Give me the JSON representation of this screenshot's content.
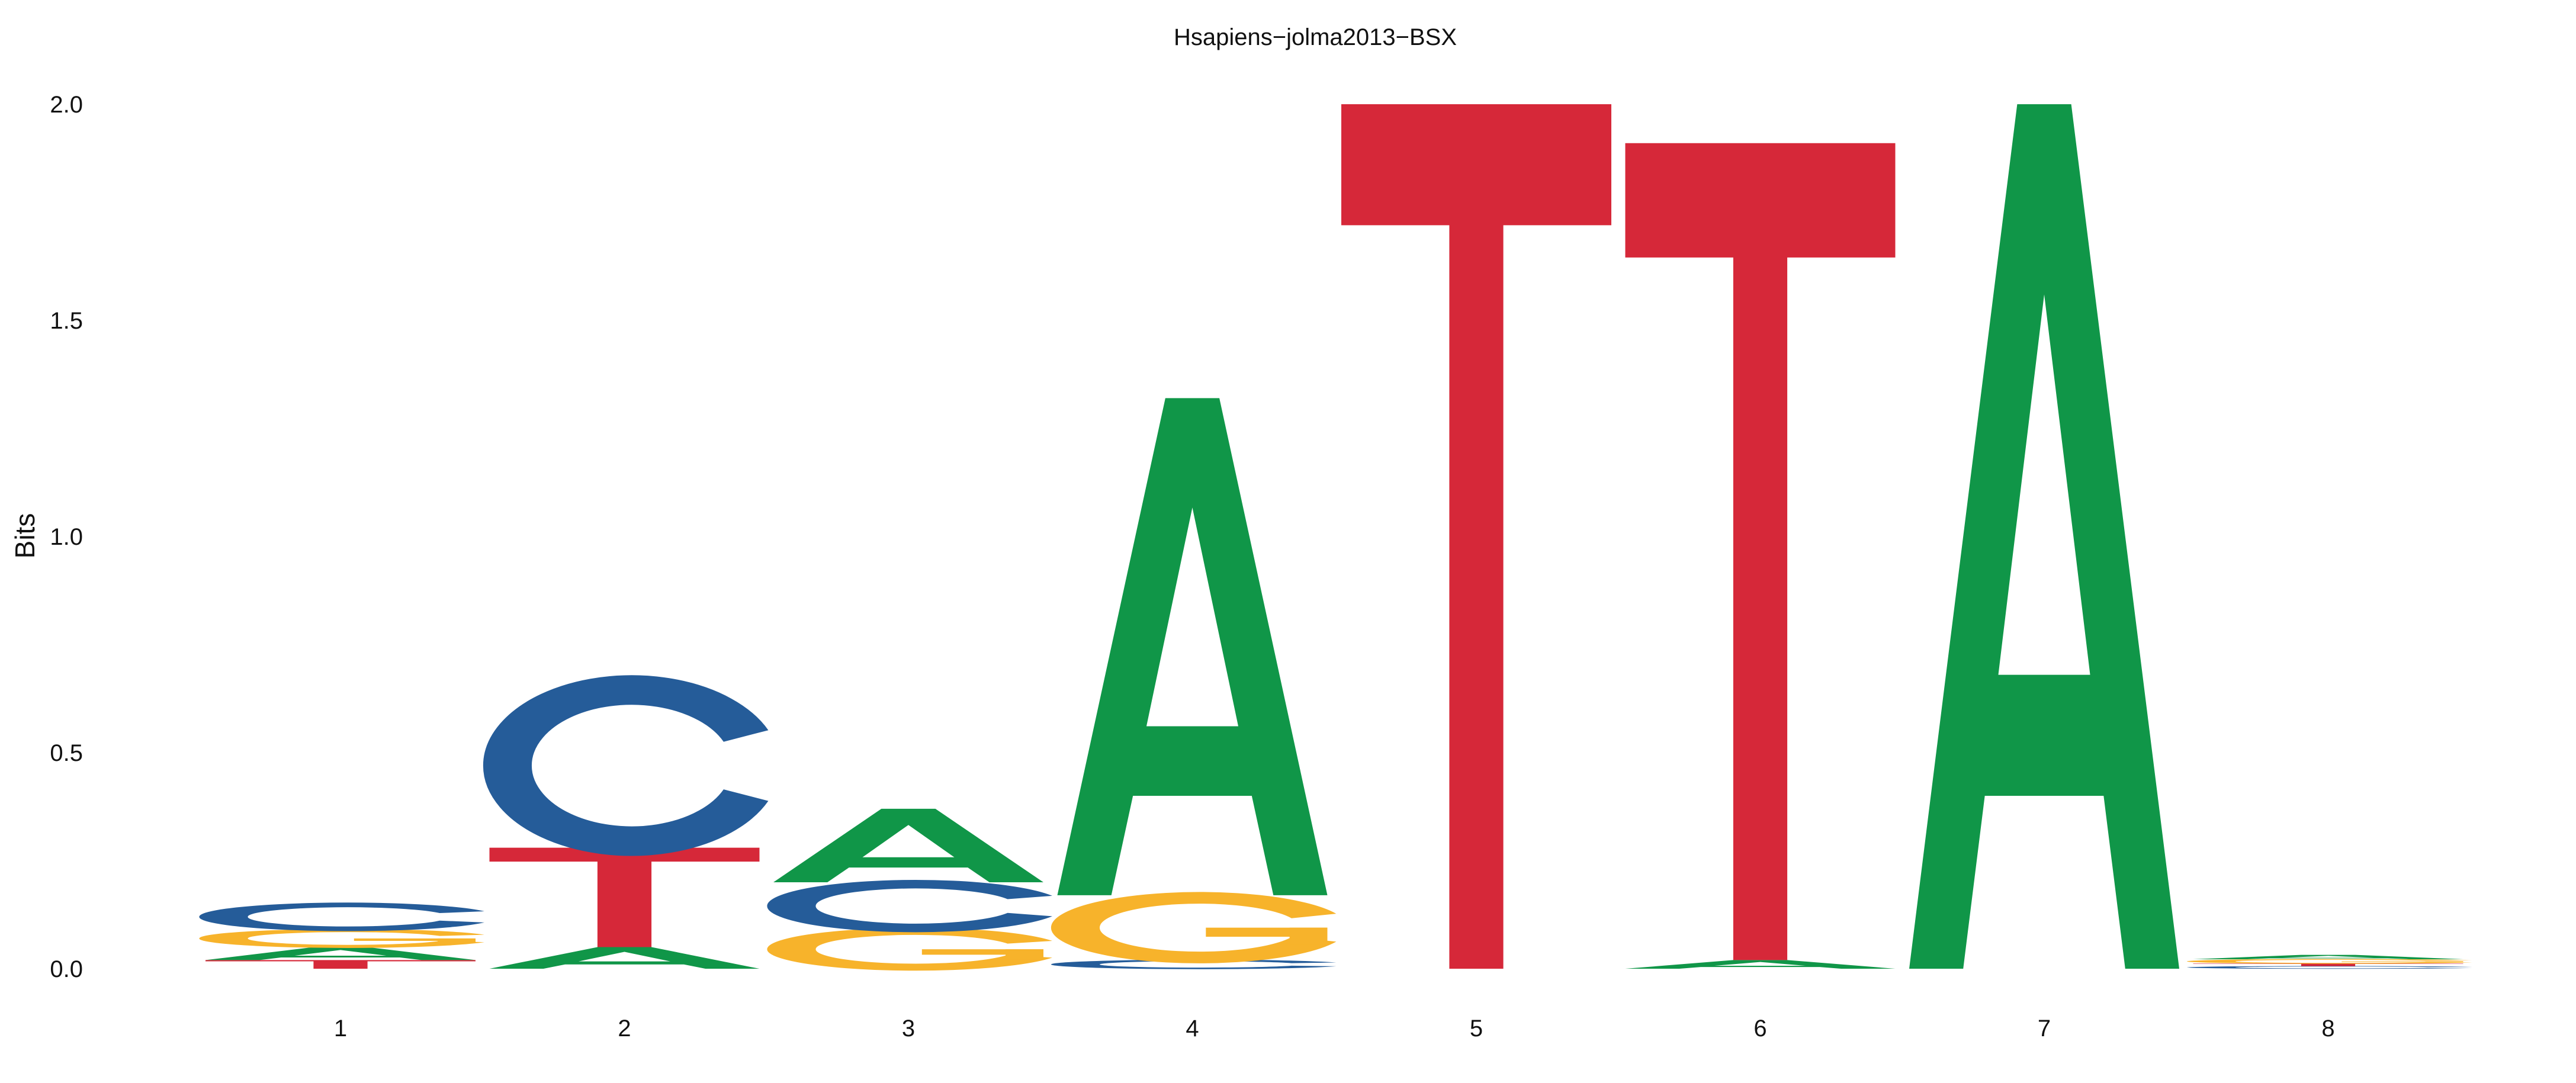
{
  "chart_data": {
    "type": "sequence-logo",
    "title": "Hsapiens−jolma2013−BSX",
    "ylabel": "Bits",
    "xlabel": "",
    "ylim": [
      0,
      2
    ],
    "yticks": [
      "0.0",
      "0.5",
      "1.0",
      "1.5",
      "2.0"
    ],
    "positions": [
      "1",
      "2",
      "3",
      "4",
      "5",
      "6",
      "7",
      "8"
    ],
    "colors": {
      "A": "#109648",
      "C": "#255C99",
      "G": "#F7B32B",
      "T": "#D62839"
    },
    "stacks": [
      [
        {
          "letter": "T",
          "bits": 0.02
        },
        {
          "letter": "A",
          "bits": 0.03
        },
        {
          "letter": "G",
          "bits": 0.04
        },
        {
          "letter": "C",
          "bits": 0.06
        }
      ],
      [
        {
          "letter": "A",
          "bits": 0.05
        },
        {
          "letter": "T",
          "bits": 0.23
        },
        {
          "letter": "C",
          "bits": 0.38
        }
      ],
      [
        {
          "letter": "G",
          "bits": 0.09
        },
        {
          "letter": "C",
          "bits": 0.11
        },
        {
          "letter": "A",
          "bits": 0.17
        }
      ],
      [
        {
          "letter": "C",
          "bits": 0.02
        },
        {
          "letter": "G",
          "bits": 0.15
        },
        {
          "letter": "A",
          "bits": 1.15
        }
      ],
      [
        {
          "letter": "T",
          "bits": 2.0
        }
      ],
      [
        {
          "letter": "A",
          "bits": 0.02
        },
        {
          "letter": "T",
          "bits": 1.89
        }
      ],
      [
        {
          "letter": "A",
          "bits": 2.0
        }
      ],
      [
        {
          "letter": "C",
          "bits": 0.006
        },
        {
          "letter": "T",
          "bits": 0.006
        },
        {
          "letter": "G",
          "bits": 0.01
        },
        {
          "letter": "A",
          "bits": 0.01
        }
      ]
    ]
  }
}
